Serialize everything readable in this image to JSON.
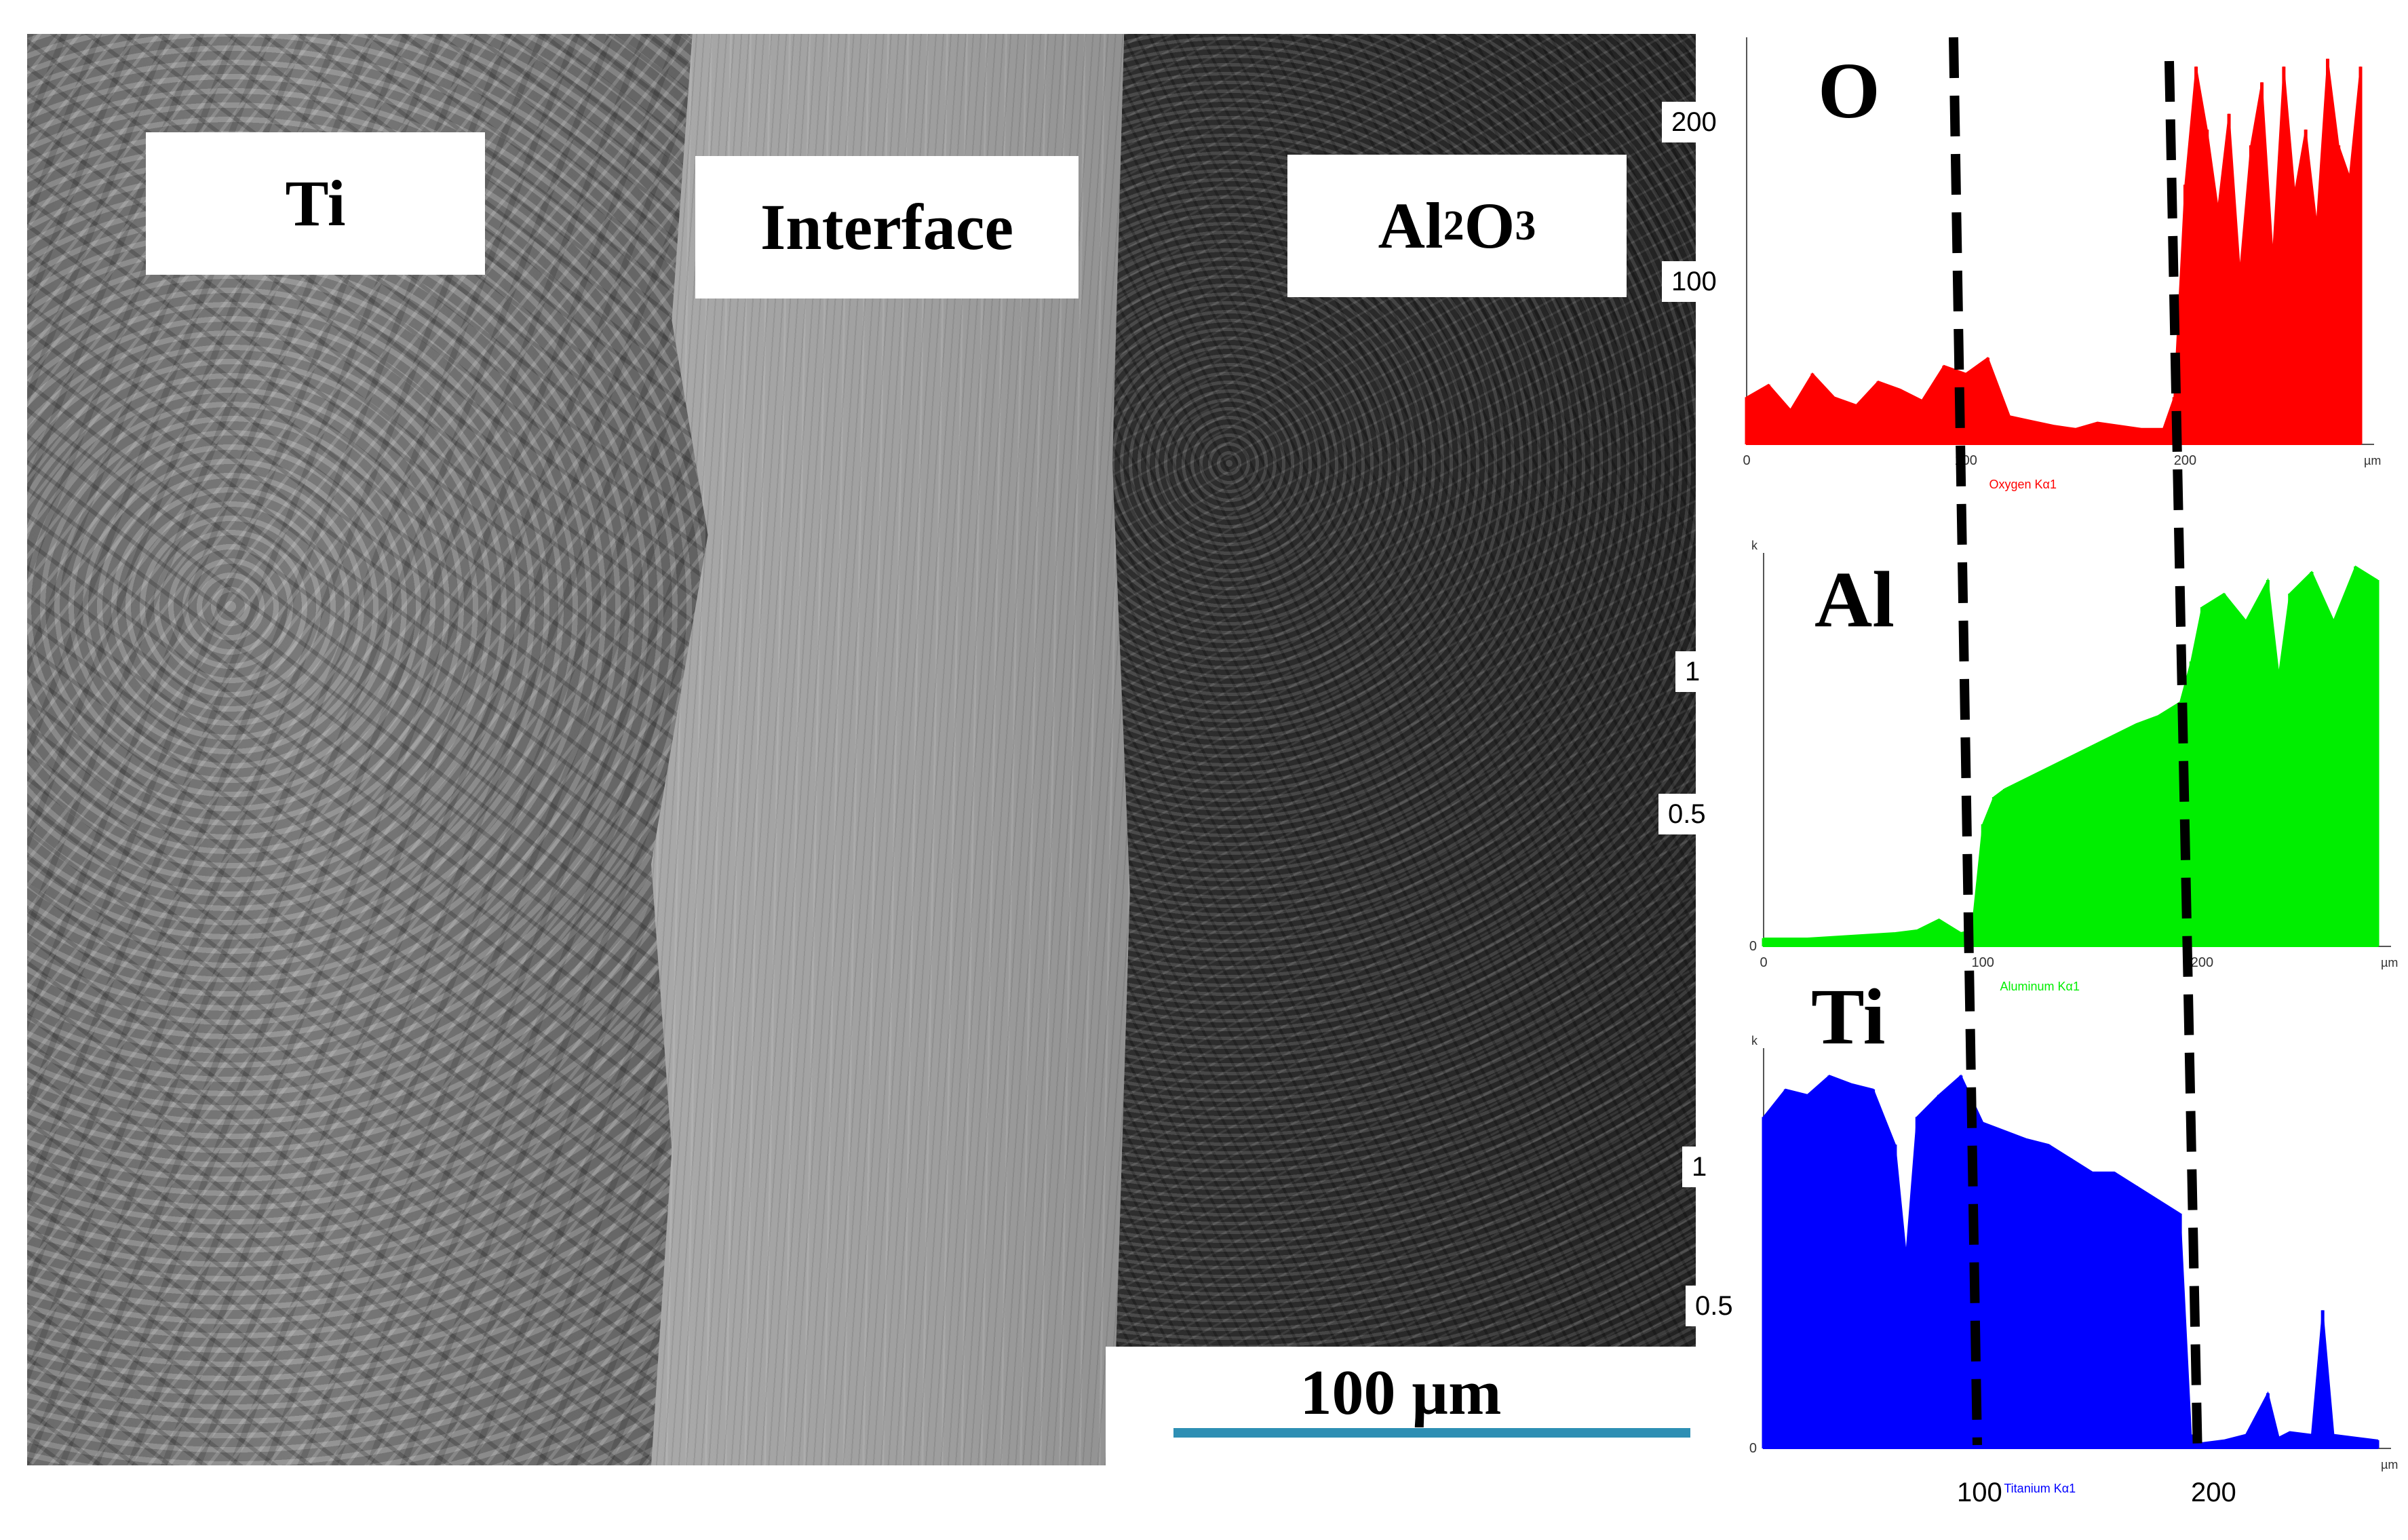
{
  "sem": {
    "labels": {
      "ti": "Ti",
      "interface": "Interface",
      "al2o3_base1": "Al",
      "al2o3_sub1": "2",
      "al2o3_base2": "O",
      "al2o3_sub2": "3"
    },
    "scale_bar_text": "100 µm"
  },
  "plots": {
    "oxygen": {
      "title": "O",
      "tick_labels": [
        "200",
        "100"
      ],
      "x_ticks": [
        "0",
        "100",
        "200"
      ],
      "unit": "µm",
      "series_label": "Oxygen Kα1",
      "color": "#ff0000"
    },
    "aluminum": {
      "title": "Al",
      "y_unit": "k",
      "tick_labels": [
        "1",
        "0.5"
      ],
      "zero": "0",
      "x_ticks": [
        "0",
        "100",
        "200"
      ],
      "unit": "µm",
      "series_label": "Aluminum Kα1",
      "color": "#00ee00"
    },
    "titanium": {
      "title": "Ti",
      "y_unit": "k",
      "tick_labels": [
        "1",
        "0.5"
      ],
      "zero": "0",
      "x_ticks_large": [
        "100",
        "200"
      ],
      "unit": "µm",
      "series_label": "Titanium Kα1",
      "color": "#0000ff"
    }
  },
  "chart_data": [
    {
      "type": "area",
      "title": "O",
      "xlabel": "µm",
      "ylabel": "",
      "xlim": [
        0,
        280
      ],
      "ylim": [
        0,
        250
      ],
      "series": [
        {
          "name": "Oxygen Kα1",
          "color": "#ff0000",
          "x": [
            0,
            10,
            20,
            30,
            40,
            50,
            60,
            70,
            80,
            90,
            100,
            110,
            120,
            130,
            140,
            150,
            160,
            170,
            180,
            190,
            195,
            200,
            205,
            210,
            215,
            220,
            225,
            230,
            235,
            240,
            245,
            250,
            255,
            260,
            265,
            270,
            275,
            280
          ],
          "y": [
            30,
            38,
            22,
            45,
            30,
            25,
            40,
            35,
            28,
            50,
            45,
            55,
            18,
            15,
            12,
            10,
            14,
            12,
            10,
            10,
            30,
            165,
            240,
            200,
            150,
            210,
            110,
            190,
            230,
            120,
            240,
            160,
            200,
            140,
            245,
            190,
            170,
            240
          ]
        }
      ]
    },
    {
      "type": "area",
      "title": "Al",
      "xlabel": "µm",
      "ylabel": "k",
      "xlim": [
        0,
        280
      ],
      "ylim": [
        0,
        1.4
      ],
      "series": [
        {
          "name": "Aluminum Kα1",
          "color": "#00ee00",
          "x": [
            0,
            20,
            40,
            60,
            70,
            80,
            90,
            95,
            100,
            105,
            110,
            120,
            130,
            140,
            150,
            160,
            170,
            180,
            190,
            195,
            200,
            210,
            220,
            230,
            235,
            240,
            250,
            260,
            270,
            280
          ],
          "y": [
            0.03,
            0.03,
            0.04,
            0.05,
            0.06,
            0.1,
            0.05,
            0.06,
            0.45,
            0.55,
            0.58,
            0.62,
            0.66,
            0.7,
            0.74,
            0.78,
            0.82,
            0.85,
            0.9,
            1.05,
            1.25,
            1.3,
            1.2,
            1.35,
            1.0,
            1.3,
            1.38,
            1.2,
            1.4,
            1.35
          ]
        }
      ]
    },
    {
      "type": "area",
      "title": "Ti",
      "xlabel": "µm",
      "ylabel": "k",
      "xlim": [
        0,
        280
      ],
      "ylim": [
        0,
        1.4
      ],
      "series": [
        {
          "name": "Titanium Kα1",
          "color": "#0000ff",
          "x": [
            0,
            10,
            20,
            30,
            40,
            50,
            60,
            65,
            70,
            80,
            90,
            100,
            110,
            120,
            130,
            140,
            150,
            160,
            170,
            180,
            190,
            195,
            200,
            210,
            220,
            230,
            235,
            240,
            250,
            255,
            260,
            270,
            280
          ],
          "y": [
            1.2,
            1.3,
            1.28,
            1.35,
            1.32,
            1.3,
            1.1,
            0.7,
            1.2,
            1.28,
            1.35,
            1.18,
            1.15,
            1.12,
            1.1,
            1.05,
            1.0,
            1.0,
            0.95,
            0.9,
            0.85,
            0.05,
            0.02,
            0.03,
            0.05,
            0.2,
            0.04,
            0.06,
            0.05,
            0.5,
            0.05,
            0.04,
            0.03
          ]
        }
      ]
    }
  ]
}
